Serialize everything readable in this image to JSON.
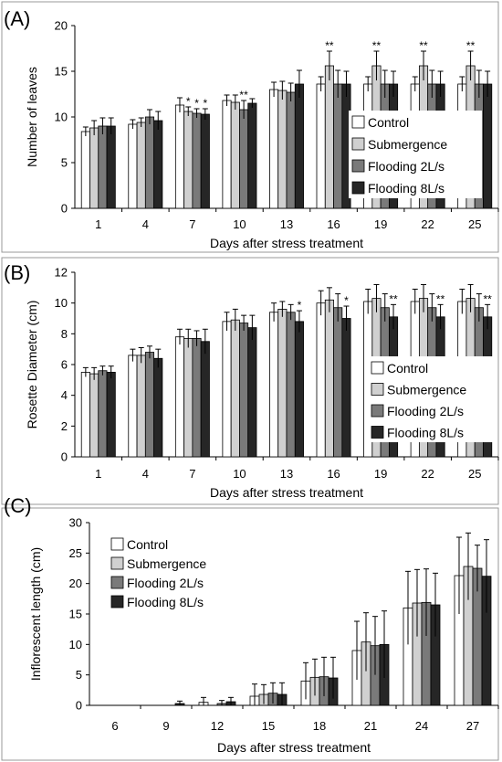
{
  "colors": {
    "Control": "#ffffff",
    "Submergence": "#d0d0d0",
    "Flooding 2L/s": "#7a7a7a",
    "Flooding 8L/s": "#262626"
  },
  "chart_data": [
    {
      "type": "bar",
      "panel_label": "(A)",
      "xlabel": "Days after stress treatment",
      "ylabel": "Number of leaves",
      "ylim": [
        0,
        20
      ],
      "yticks": [
        0,
        5,
        10,
        15,
        20
      ],
      "categories": [
        "1",
        "4",
        "7",
        "10",
        "13",
        "16",
        "19",
        "22",
        "25"
      ],
      "legend": "right",
      "grid": false,
      "series": [
        {
          "name": "Control",
          "values": [
            8.4,
            9.2,
            11.3,
            11.8,
            13.0,
            13.6,
            13.6,
            13.6,
            13.6
          ],
          "errors": [
            0.5,
            0.5,
            0.8,
            0.6,
            0.8,
            0.8,
            0.8,
            0.8,
            0.8
          ]
        },
        {
          "name": "Submergence",
          "values": [
            8.8,
            9.4,
            10.6,
            11.6,
            12.9,
            15.6,
            15.6,
            15.6,
            15.6
          ],
          "errors": [
            0.8,
            0.5,
            0.5,
            0.8,
            1.0,
            1.6,
            1.6,
            1.6,
            1.6
          ]
        },
        {
          "name": "Flooding 2L/s",
          "values": [
            9.0,
            10.0,
            10.4,
            10.8,
            12.7,
            13.6,
            13.6,
            13.6,
            13.6
          ],
          "errors": [
            0.9,
            0.8,
            0.5,
            1.0,
            1.0,
            1.5,
            1.5,
            1.5,
            1.5
          ]
        },
        {
          "name": "Flooding 8L/s",
          "values": [
            9.0,
            9.6,
            10.3,
            11.5,
            13.6,
            13.6,
            13.6,
            13.6,
            13.6
          ],
          "errors": [
            0.9,
            1.0,
            0.6,
            0.5,
            1.5,
            1.4,
            1.4,
            1.4,
            1.4
          ]
        }
      ],
      "annotations": [
        {
          "category": "7",
          "series": "Submergence",
          "text": "*"
        },
        {
          "category": "7",
          "series": "Flooding 2L/s",
          "text": "*"
        },
        {
          "category": "7",
          "series": "Flooding 8L/s",
          "text": "*"
        },
        {
          "category": "10",
          "series": "Flooding 2L/s",
          "text": "**"
        },
        {
          "category": "16",
          "series": "Submergence",
          "text": "**"
        },
        {
          "category": "19",
          "series": "Submergence",
          "text": "**"
        },
        {
          "category": "22",
          "series": "Submergence",
          "text": "**"
        },
        {
          "category": "25",
          "series": "Submergence",
          "text": "**"
        }
      ]
    },
    {
      "type": "bar",
      "panel_label": "(B)",
      "xlabel": "Days after stress treatment",
      "ylabel": "Rosette Diameter (cm)",
      "ylim": [
        0,
        12
      ],
      "yticks": [
        0,
        2,
        4,
        6,
        8,
        10,
        12
      ],
      "categories": [
        "1",
        "4",
        "7",
        "10",
        "13",
        "16",
        "19",
        "22",
        "25"
      ],
      "legend": "right",
      "grid": false,
      "series": [
        {
          "name": "Control",
          "values": [
            5.5,
            6.6,
            7.8,
            8.8,
            9.4,
            10.0,
            10.1,
            10.1,
            10.1
          ],
          "errors": [
            0.3,
            0.4,
            0.5,
            0.6,
            0.6,
            0.8,
            0.8,
            0.8,
            0.8
          ]
        },
        {
          "name": "Submergence",
          "values": [
            5.4,
            6.6,
            7.7,
            8.9,
            9.6,
            10.2,
            10.3,
            10.3,
            10.3
          ],
          "errors": [
            0.4,
            0.5,
            0.6,
            0.7,
            0.5,
            0.8,
            0.9,
            0.9,
            0.9
          ]
        },
        {
          "name": "Flooding 2L/s",
          "values": [
            5.6,
            6.8,
            7.7,
            8.7,
            9.4,
            9.7,
            9.7,
            9.7,
            9.7
          ],
          "errors": [
            0.3,
            0.4,
            0.5,
            0.5,
            0.5,
            0.9,
            0.9,
            0.9,
            0.9
          ]
        },
        {
          "name": "Flooding 8L/s",
          "values": [
            5.5,
            6.4,
            7.5,
            8.4,
            8.8,
            9.0,
            9.1,
            9.1,
            9.1
          ],
          "errors": [
            0.4,
            0.6,
            0.8,
            0.8,
            0.7,
            0.8,
            0.8,
            0.8,
            0.8
          ]
        }
      ],
      "annotations": [
        {
          "category": "13",
          "series": "Flooding 8L/s",
          "text": "*"
        },
        {
          "category": "16",
          "series": "Flooding 8L/s",
          "text": "*"
        },
        {
          "category": "19",
          "series": "Flooding 8L/s",
          "text": "**"
        },
        {
          "category": "22",
          "series": "Flooding 8L/s",
          "text": "**"
        },
        {
          "category": "25",
          "series": "Flooding 8L/s",
          "text": "**"
        }
      ]
    },
    {
      "type": "bar",
      "panel_label": "(C)",
      "xlabel": "Days after stress treatment",
      "ylabel": "Inflorescent length (cm)",
      "ylim": [
        0,
        30
      ],
      "yticks": [
        0,
        5,
        10,
        15,
        20,
        25,
        30
      ],
      "categories": [
        "6",
        "9",
        "12",
        "15",
        "18",
        "21",
        "24",
        "27"
      ],
      "legend": "top-left",
      "grid": false,
      "series": [
        {
          "name": "Control",
          "values": [
            0,
            0,
            0.5,
            1.5,
            4.0,
            9.0,
            16.0,
            21.3
          ],
          "errors": [
            0,
            0,
            0.8,
            2.0,
            3.0,
            4.8,
            6.0,
            6.3
          ]
        },
        {
          "name": "Submergence",
          "values": [
            0,
            0,
            0,
            1.8,
            4.6,
            10.4,
            16.8,
            22.8
          ],
          "errors": [
            0,
            0,
            0,
            1.6,
            3.0,
            4.8,
            5.5,
            5.5
          ]
        },
        {
          "name": "Flooding 2L/s",
          "values": [
            0,
            0,
            0.3,
            2.0,
            4.7,
            9.8,
            16.9,
            22.5
          ],
          "errors": [
            0,
            0,
            0.5,
            1.7,
            3.2,
            4.8,
            5.5,
            3.8
          ]
        },
        {
          "name": "Flooding 8L/s",
          "values": [
            0,
            0.3,
            0.6,
            1.8,
            4.5,
            10.0,
            16.5,
            21.2
          ],
          "errors": [
            0,
            0.4,
            0.7,
            1.9,
            3.4,
            5.5,
            5.2,
            6.0
          ]
        }
      ],
      "annotations": []
    }
  ]
}
